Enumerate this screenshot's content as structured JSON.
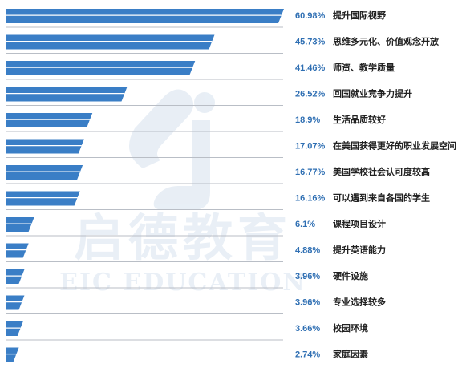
{
  "watermark": {
    "brand_cn": "启德教育",
    "brand_en": "EIC EDUCATION"
  },
  "colors": {
    "bar_fill": "#3a7ec6",
    "baseline": "#b9bec6",
    "pct_text": "#2f6fb3",
    "cat_text": "#222222",
    "watermark": "#e9eff6"
  },
  "chart_data": {
    "type": "bar",
    "orientation": "horizontal",
    "value_unit": "%",
    "grid": false,
    "legend": "none",
    "xlim": [
      0,
      60.98
    ],
    "categories": [
      "提升国际视野",
      "思维多元化、价值观念开放",
      "师资、教学质量",
      "回国就业竞争力提升",
      "生活品质较好",
      "在美国获得更好的职业发展空间",
      "美国学校社会认可度较高",
      "可以遇到来自各国的学生",
      "课程项目设计",
      "提升英语能力",
      "硬件设施",
      "专业选择较多",
      "校园环境",
      "家庭因素"
    ],
    "values": [
      60.98,
      45.73,
      41.46,
      26.52,
      18.9,
      17.07,
      16.77,
      16.16,
      6.1,
      4.88,
      3.96,
      3.96,
      3.66,
      2.74
    ],
    "value_labels": [
      "60.98%",
      "45.73%",
      "41.46%",
      "26.52%",
      "18.9%",
      "17.07%",
      "16.77%",
      "16.16%",
      "6.1%",
      "4.88%",
      "3.96%",
      "3.96%",
      "3.66%",
      "2.74%"
    ]
  }
}
